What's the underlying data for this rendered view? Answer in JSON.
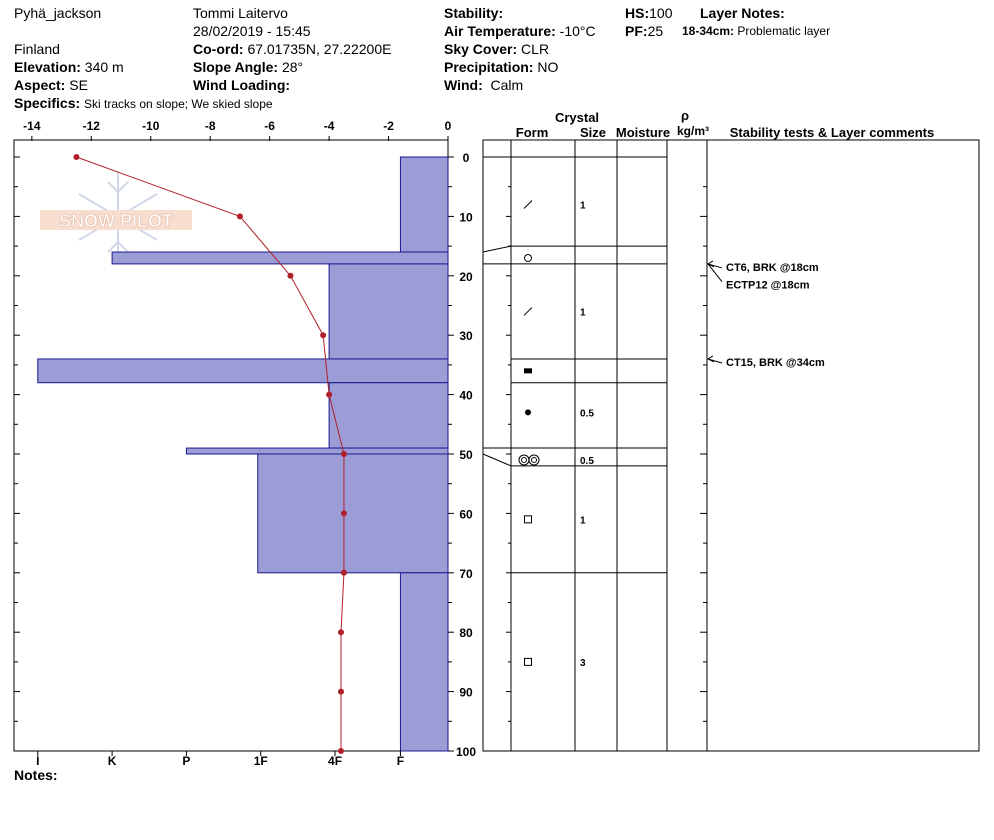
{
  "header": {
    "site": "Pyhä_jackson",
    "country": "Finland",
    "observer": "Tommi Laitervo",
    "datetime": "28/02/2019 - 15:45",
    "elevation_label": "Elevation:",
    "elevation_value": "340 m",
    "aspect_label": "Aspect:",
    "aspect_value": "SE",
    "specifics_label": "Specifics:",
    "specifics_value": "Ski tracks on slope; We skied slope",
    "coord_label": "Co-ord:",
    "coord_value": "67.01735N, 27.22200E",
    "slope_label": "Slope Angle:",
    "slope_value": "28°",
    "wind_loading_label": "Wind Loading:",
    "wind_loading_value": "",
    "stability_label": "Stability:",
    "stability_value": "",
    "air_temp_label": "Air Temperature:",
    "air_temp_value": "-10°C",
    "sky_label": "Sky Cover:",
    "sky_value": "CLR",
    "precip_label": "Precipitation:",
    "precip_value": "NO",
    "wind_label": "Wind:",
    "wind_value": "Calm",
    "hs_label": "HS:",
    "hs_value": "100",
    "pf_label": "PF:",
    "pf_value": "25",
    "layer_notes_label": "Layer Notes:",
    "layer_notes_range": "18-34cm:",
    "layer_notes_text": "Problematic layer",
    "notes_label": "Notes:",
    "logo_text": "SNOW PILOT"
  },
  "chart_data": {
    "type": "snow-profile",
    "temperature_axis": {
      "ticks": [
        "-14",
        "-12",
        "-10",
        "-8",
        "-6",
        "-4",
        "-2",
        "0"
      ],
      "values": [
        -14,
        -12,
        -10,
        -8,
        -6,
        -4,
        -2,
        0
      ],
      "range": [
        -14.6,
        0
      ]
    },
    "depth_axis": {
      "ticks": [
        "0",
        "10",
        "20",
        "30",
        "40",
        "50",
        "60",
        "70",
        "80",
        "90",
        "100"
      ],
      "range": [
        0,
        100
      ]
    },
    "hardness_axis": {
      "labels": [
        "I",
        "K",
        "P",
        "1F",
        "4F",
        "F"
      ],
      "temp_equiv": [
        -13.8,
        -11.3,
        -8.8,
        -6.3,
        -3.8,
        -1.6
      ]
    },
    "temperature_profile": {
      "depth": [
        0,
        10,
        20,
        30,
        40,
        50,
        60,
        70,
        80,
        90,
        100
      ],
      "temp": [
        -12.5,
        -7.0,
        -5.3,
        -4.2,
        -4.0,
        -3.5,
        -3.5,
        -3.5,
        -3.6,
        -3.6,
        -3.6
      ],
      "color": "#b0202a"
    },
    "hardness_layers": [
      {
        "top": 0,
        "bottom": 16,
        "hardness": "F",
        "temp_equiv": -1.6
      },
      {
        "top": 16,
        "bottom": 18,
        "hardness": "K",
        "temp_equiv": -11.3
      },
      {
        "top": 18,
        "bottom": 34,
        "hardness": "4F",
        "temp_equiv": -4.0
      },
      {
        "top": 34,
        "bottom": 38,
        "hardness": "I",
        "temp_equiv": -13.8
      },
      {
        "top": 38,
        "bottom": 49,
        "hardness": "4F",
        "temp_equiv": -4.0
      },
      {
        "top": 49,
        "bottom": 50,
        "hardness": "P",
        "temp_equiv": -8.8
      },
      {
        "top": 50,
        "bottom": 70,
        "hardness": "1F",
        "temp_equiv": -6.4
      },
      {
        "top": 70,
        "bottom": 100,
        "hardness": "F",
        "temp_equiv": -1.6
      }
    ],
    "bar_fill": "#9c9cd6",
    "bar_stroke": "#1a1a8c",
    "layer_table": {
      "title_crystal": "Crystal",
      "col_form": "Form",
      "col_size": "Size",
      "col_moisture": "Moisture",
      "col_rho": "ρ",
      "col_rho_unit": "kg/m³",
      "col_comments": "Stability tests & Layer comments",
      "boundaries": [
        15,
        18,
        34,
        38,
        49,
        52,
        70
      ],
      "rows": [
        {
          "center": 8,
          "form": "slash",
          "size": "1"
        },
        {
          "center": 17,
          "form": "circle",
          "size": ""
        },
        {
          "center": 26,
          "form": "slash",
          "size": "1"
        },
        {
          "center": 36,
          "form": "filled-square",
          "size": ""
        },
        {
          "center": 43,
          "form": "dot",
          "size": "0.5"
        },
        {
          "center": 51,
          "form": "double-circle",
          "size": "0.5"
        },
        {
          "center": 61,
          "form": "square",
          "size": "1"
        },
        {
          "center": 85,
          "form": "square",
          "size": "3"
        }
      ],
      "tests": [
        {
          "depth": 18,
          "text": "CT6, BRK @18cm",
          "label_depth": 18.5
        },
        {
          "depth": 18,
          "text": "ECTP12 @18cm",
          "label_depth": 21.5
        },
        {
          "depth": 34,
          "text": "CT15, BRK @34cm",
          "label_depth": 34.5
        }
      ]
    }
  }
}
